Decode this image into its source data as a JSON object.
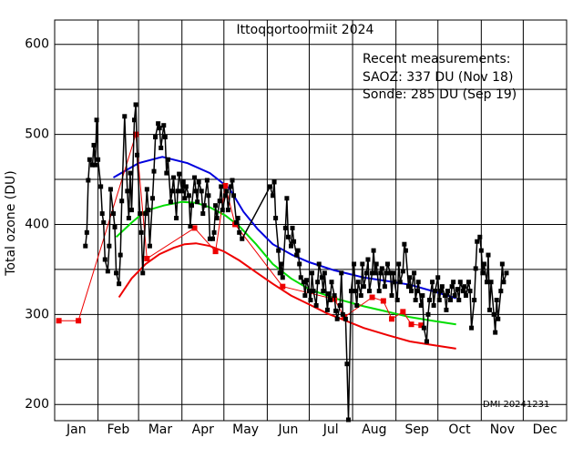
{
  "chart_data": {
    "type": "line",
    "title": "Ittoqqortoormiit 2024",
    "ylabel": "Total ozone (DU)",
    "annotations": [
      "Recent measurements:",
      "SAOZ: 337 DU (Nov 18)",
      "Sonde: 285 DU (Sep 19)"
    ],
    "credit": "DMI 20241231",
    "months": [
      "Jan",
      "Feb",
      "Mar",
      "Apr",
      "May",
      "Jun",
      "Jul",
      "Aug",
      "Sep",
      "Oct",
      "Nov",
      "Dec"
    ],
    "xlim": [
      0,
      366
    ],
    "xticks": [
      0,
      31,
      60,
      91,
      121,
      152,
      182,
      213,
      244,
      274,
      305,
      335,
      366
    ],
    "ylim": [
      182,
      627
    ],
    "yticks": [
      200,
      300,
      400,
      500,
      600
    ],
    "yminor": [
      250,
      350,
      450,
      550
    ],
    "grid": true,
    "series": [
      {
        "color": "#0000dd",
        "marker": false,
        "x": [
          42,
          60,
          77,
          95,
          111,
          125,
          135,
          145,
          156,
          170,
          182,
          200,
          221,
          238,
          254,
          270,
          287
        ],
        "values": [
          452,
          468,
          475,
          468,
          457,
          440,
          414,
          395,
          378,
          366,
          358,
          349,
          341,
          337,
          333,
          326,
          318
        ]
      },
      {
        "color": "#00dd00",
        "marker": false,
        "x": [
          44,
          55,
          65,
          78,
          91,
          101,
          111,
          122,
          132,
          144,
          156,
          169,
          182,
          200,
          221,
          238,
          254,
          270,
          287
        ],
        "values": [
          386,
          402,
          415,
          421,
          425,
          424,
          419,
          410,
          398,
          378,
          356,
          340,
          328,
          318,
          309,
          303,
          297,
          293,
          289
        ]
      },
      {
        "color": "#ee0000",
        "marker": false,
        "x": [
          46,
          55,
          65,
          75,
          85,
          93,
          101,
          111,
          121,
          132,
          143,
          156,
          169,
          182,
          195,
          208,
          221,
          238,
          254,
          270,
          287
        ],
        "values": [
          319,
          340,
          356,
          367,
          374,
          378,
          379,
          376,
          370,
          360,
          348,
          334,
          321,
          311,
          301,
          293,
          285,
          277,
          270,
          266,
          262
        ]
      },
      {
        "color": "#ee0000",
        "marker": true,
        "thin": true,
        "x": [
          3,
          17,
          58,
          66,
          100,
          115,
          122,
          129,
          163,
          200,
          207,
          227,
          235,
          241,
          249,
          255,
          262
        ],
        "values": [
          293,
          293,
          500,
          362,
          396,
          370,
          443,
          400,
          331,
          317,
          297,
          319,
          315,
          295,
          303,
          289,
          288
        ]
      },
      {
        "color": "#000000",
        "marker": true,
        "x": [
          22,
          23,
          24,
          25,
          27,
          28,
          29,
          30,
          31,
          33,
          34,
          35,
          36,
          38,
          39,
          40,
          42,
          43,
          44,
          46,
          47,
          48,
          50,
          52,
          53,
          54,
          55,
          57,
          58,
          59,
          61,
          62,
          63,
          65,
          66,
          67,
          68,
          70,
          71,
          72,
          74,
          75,
          76,
          78,
          79,
          80,
          81,
          83,
          84,
          85,
          87,
          88,
          89,
          91,
          92,
          93,
          94,
          96,
          97,
          98,
          100,
          101,
          102,
          103,
          105,
          106,
          107,
          109,
          110,
          111,
          113,
          114,
          115,
          116,
          118,
          119,
          120,
          122,
          123,
          124,
          126,
          127,
          128,
          130,
          131,
          132,
          134,
          154,
          156,
          157,
          158,
          160,
          161,
          162,
          163,
          165,
          166,
          167,
          169,
          170,
          171,
          173,
          174,
          175,
          176,
          178,
          179,
          180,
          182,
          183,
          184,
          185,
          187,
          188,
          189,
          191,
          192,
          193,
          195,
          196,
          197,
          198,
          200,
          201,
          202,
          204,
          205,
          206,
          208,
          209,
          210,
          212,
          214,
          215,
          216,
          217,
          219,
          220,
          221,
          223,
          224,
          225,
          227,
          228,
          229,
          230,
          232,
          233,
          234,
          236,
          237,
          238,
          240,
          241,
          242,
          243,
          245,
          246,
          247,
          249,
          250,
          251,
          253,
          254,
          255,
          257,
          258,
          259,
          260,
          262,
          263,
          264,
          266,
          267,
          268,
          270,
          271,
          272,
          274,
          275,
          276,
          277,
          279,
          280,
          281,
          283,
          284,
          285,
          286,
          288,
          289,
          290,
          292,
          293,
          294,
          296,
          297,
          298,
          300,
          301,
          302,
          304,
          305,
          306,
          307,
          309,
          310,
          311,
          312,
          314,
          315,
          316,
          317,
          319,
          320,
          321,
          323
        ],
        "values": [
          376,
          391,
          449,
          472,
          466,
          488,
          466,
          516,
          472,
          442,
          412,
          402,
          361,
          348,
          376,
          439,
          412,
          397,
          346,
          334,
          366,
          426,
          520,
          437,
          407,
          457,
          416,
          516,
          533,
          477,
          412,
          391,
          346,
          412,
          439,
          416,
          376,
          429,
          459,
          497,
          512,
          507,
          485,
          510,
          497,
          457,
          472,
          425,
          437,
          452,
          407,
          437,
          456,
          437,
          447,
          429,
          442,
          432,
          398,
          421,
          452,
          437,
          425,
          447,
          437,
          412,
          421,
          449,
          432,
          384,
          384,
          391,
          421,
          407,
          426,
          442,
          416,
          432,
          437,
          416,
          442,
          449,
          432,
          402,
          407,
          391,
          384,
          442,
          432,
          447,
          407,
          371,
          346,
          356,
          341,
          396,
          429,
          386,
          376,
          396,
          381,
          366,
          371,
          356,
          341,
          336,
          321,
          338,
          326,
          316,
          346,
          326,
          310,
          336,
          356,
          341,
          326,
          346,
          305,
          323,
          316,
          336,
          321,
          304,
          295,
          310,
          346,
          300,
          295,
          245,
          183,
          326,
          356,
          326,
          310,
          336,
          321,
          356,
          331,
          346,
          361,
          326,
          346,
          371,
          346,
          356,
          326,
          346,
          351,
          331,
          346,
          356,
          346,
          321,
          346,
          336,
          316,
          356,
          336,
          348,
          378,
          371,
          331,
          341,
          326,
          346,
          316,
          326,
          336,
          310,
          321,
          285,
          270,
          300,
          316,
          336,
          310,
          326,
          341,
          316,
          326,
          331,
          321,
          305,
          326,
          316,
          331,
          336,
          321,
          328,
          316,
          336,
          326,
          331,
          321,
          336,
          326,
          285,
          316,
          351,
          381,
          386,
          371,
          346,
          356,
          336,
          366,
          305,
          336,
          300,
          280,
          316,
          295,
          326,
          356,
          336,
          346
        ]
      }
    ]
  }
}
